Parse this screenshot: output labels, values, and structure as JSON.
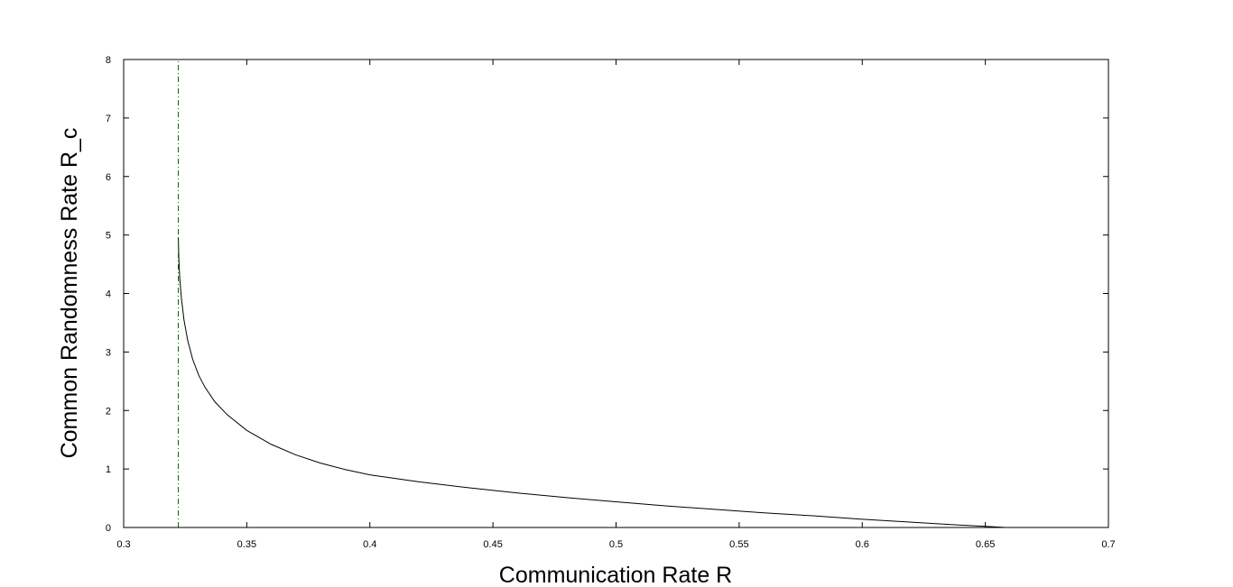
{
  "chart_data": {
    "type": "line",
    "title": "",
    "xlabel": "Communication Rate R",
    "ylabel": "Common Randomness Rate R_c",
    "xlim": [
      0.3,
      0.7
    ],
    "ylim": [
      0,
      8
    ],
    "xticks": [
      0.3,
      0.35,
      0.4,
      0.45,
      0.5,
      0.55,
      0.6,
      0.65,
      0.7
    ],
    "yticks": [
      0,
      1,
      2,
      3,
      4,
      5,
      6,
      7,
      8
    ],
    "xtick_labels": [
      "0.3",
      "0.35",
      "0.4",
      "0.45",
      "0.5",
      "0.55",
      "0.6",
      "0.65",
      "0.7"
    ],
    "ytick_labels": [
      "0",
      "1",
      "2",
      "3",
      "4",
      "5",
      "6",
      "7",
      "8"
    ],
    "grid": false,
    "legend": "none",
    "series": [
      {
        "style": "solid",
        "color": "#000000",
        "x": [
          0.3222,
          0.3224,
          0.3228,
          0.3235,
          0.3245,
          0.326,
          0.328,
          0.3305,
          0.333,
          0.337,
          0.342,
          0.35,
          0.36,
          0.37,
          0.38,
          0.39,
          0.4,
          0.42,
          0.44,
          0.46,
          0.48,
          0.5,
          0.52,
          0.54,
          0.56,
          0.58,
          0.6,
          0.62,
          0.64,
          0.65,
          0.6583
        ],
        "y": [
          4.95,
          4.6,
          4.25,
          3.9,
          3.55,
          3.2,
          2.88,
          2.6,
          2.4,
          2.15,
          1.93,
          1.66,
          1.42,
          1.24,
          1.1,
          0.99,
          0.9,
          0.78,
          0.68,
          0.59,
          0.51,
          0.44,
          0.37,
          0.31,
          0.25,
          0.2,
          0.14,
          0.09,
          0.04,
          0.02,
          0.0
        ]
      },
      {
        "style": "dash-dot",
        "color": "#006400",
        "x": [
          0.3222,
          0.3222
        ],
        "y": [
          0,
          8
        ]
      }
    ]
  }
}
